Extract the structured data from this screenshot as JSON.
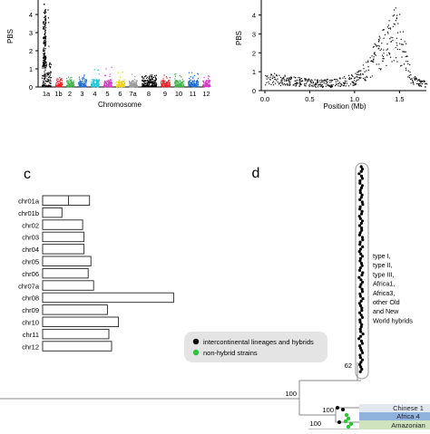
{
  "chart_data": [
    {
      "type": "scatter",
      "panel": "a",
      "xlabel": "Chromosome",
      "ylabel": "PBS",
      "categories": [
        "1a",
        "1b",
        "2",
        "3",
        "4",
        "5",
        "6",
        "7a",
        "8",
        "9",
        "10",
        "11",
        "12"
      ],
      "ylim": [
        0,
        4.6
      ],
      "yticks": [
        0,
        1,
        2,
        3,
        4
      ],
      "series": [
        {
          "category": "1a",
          "color": "#000000",
          "typical_range": [
            0.05,
            1.4
          ],
          "max": 4.6
        },
        {
          "category": "1b",
          "color": "#e8212a",
          "typical_range": [
            0.05,
            0.35
          ],
          "max": 0.55
        },
        {
          "category": "2",
          "color": "#3fb24a",
          "typical_range": [
            0.05,
            0.4
          ],
          "max": 0.6
        },
        {
          "category": "3",
          "color": "#1f6fd1",
          "typical_range": [
            0.05,
            0.4
          ],
          "max": 0.7
        },
        {
          "category": "4",
          "color": "#22c3d6",
          "typical_range": [
            0.05,
            0.45
          ],
          "max": 1.05
        },
        {
          "category": "5",
          "color": "#d63cc8",
          "typical_range": [
            0.05,
            0.45
          ],
          "max": 1.25
        },
        {
          "category": "6",
          "color": "#f0d21b",
          "typical_range": [
            0.05,
            0.4
          ],
          "max": 0.9
        },
        {
          "category": "7a",
          "color": "#9a9a9a",
          "typical_range": [
            0.05,
            0.4
          ],
          "max": 0.75
        },
        {
          "category": "8",
          "color": "#000000",
          "typical_range": [
            0.05,
            0.55
          ],
          "max": 0.7
        },
        {
          "category": "9",
          "color": "#e8212a",
          "typical_range": [
            0.05,
            0.4
          ],
          "max": 0.8
        },
        {
          "category": "10",
          "color": "#3fb24a",
          "typical_range": [
            0.05,
            0.4
          ],
          "max": 0.75
        },
        {
          "category": "11",
          "color": "#1f6fd1",
          "typical_range": [
            0.05,
            0.4
          ],
          "max": 0.85
        },
        {
          "category": "12",
          "color": "#d63cc8",
          "typical_range": [
            0.05,
            0.4
          ],
          "max": 0.65
        }
      ]
    },
    {
      "type": "scatter",
      "panel": "b",
      "xlabel": "Position (Mb)",
      "ylabel": "PBS",
      "xlim": [
        0,
        1.8
      ],
      "ylim": [
        0,
        4.6
      ],
      "xticks": [
        "0.0",
        "0.5",
        "1.0",
        "1.5"
      ],
      "yticks": [
        0,
        1,
        2,
        3,
        4
      ],
      "profile": [
        {
          "x": 0.0,
          "y": 0.9
        },
        {
          "x": 0.2,
          "y": 0.8
        },
        {
          "x": 0.4,
          "y": 0.65
        },
        {
          "x": 0.6,
          "y": 0.55
        },
        {
          "x": 0.8,
          "y": 0.6
        },
        {
          "x": 1.0,
          "y": 0.85
        },
        {
          "x": 1.15,
          "y": 1.6
        },
        {
          "x": 1.25,
          "y": 2.6
        },
        {
          "x": 1.32,
          "y": 3.1
        },
        {
          "x": 1.38,
          "y": 3.6
        },
        {
          "x": 1.45,
          "y": 4.3
        },
        {
          "x": 1.5,
          "y": 3.8
        },
        {
          "x": 1.55,
          "y": 2.8
        },
        {
          "x": 1.62,
          "y": 1.0
        },
        {
          "x": 1.7,
          "y": 0.6
        },
        {
          "x": 1.8,
          "y": 0.5
        }
      ]
    },
    {
      "type": "bar",
      "panel": "c",
      "categories": [
        "chr01a",
        "chr01b",
        "chr02",
        "chr03",
        "chr04",
        "chr05",
        "chr06",
        "chr07a",
        "chr08",
        "chr09",
        "chr10",
        "chr11",
        "chr12"
      ],
      "values": [
        3.4,
        1.4,
        2.9,
        3.0,
        3.0,
        3.5,
        3.3,
        3.7,
        9.5,
        4.7,
        5.5,
        4.8,
        5.0
      ]
    },
    {
      "type": "tree",
      "panel": "d",
      "clade_label": [
        "type I,",
        "type II,",
        "type III,",
        "Africa1,",
        "Africa3,",
        "other Old",
        "and New",
        "World hybrids"
      ],
      "bootstrap": [
        "62",
        "100",
        "100",
        "100"
      ],
      "group_labels": [
        "Chinese 1",
        "Africa 4",
        "Amazonian"
      ],
      "legend": [
        {
          "label": "intercontinental lineages and hybrids",
          "color": "#000000"
        },
        {
          "label": "non-hybrid strains",
          "color": "#2fc33a"
        }
      ]
    }
  ],
  "panel_letters": {
    "c": "c",
    "d": "d"
  }
}
